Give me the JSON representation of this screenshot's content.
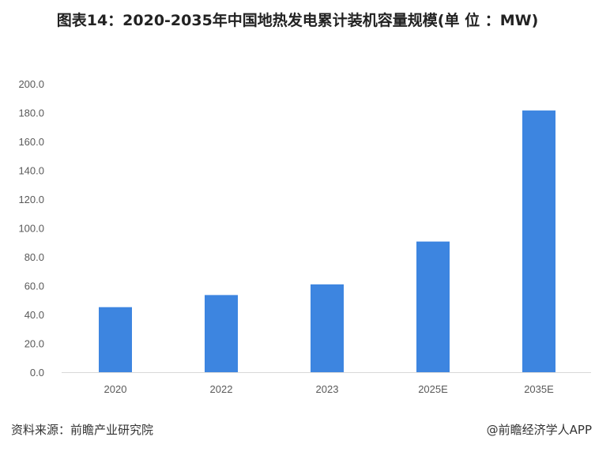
{
  "title": "图表14：2020-2035年中国地热发电累计装机容量规模(单 位 ：MW)",
  "source": "资料来源：前瞻产业研究院",
  "credit": "@前瞻经济学人APP",
  "watermark": "前瞻产业研究院",
  "chart_data": {
    "type": "bar",
    "title": "图表14：2020-2035年中国地热发电累计装机容量规模(单 位 ：MW)",
    "categories": [
      "2020",
      "2022",
      "2023",
      "2025E",
      "2035E"
    ],
    "values": [
      45.1,
      53.5,
      60.9,
      90.6,
      181.5
    ],
    "ylim": [
      0,
      200
    ],
    "yticks": [
      "0.0",
      "20.0",
      "40.0",
      "60.0",
      "80.0",
      "100.0",
      "120.0",
      "140.0",
      "160.0",
      "180.0",
      "200.0"
    ],
    "grid": false,
    "bar_color": "#3d85e0",
    "xlabel": "",
    "ylabel": ""
  }
}
